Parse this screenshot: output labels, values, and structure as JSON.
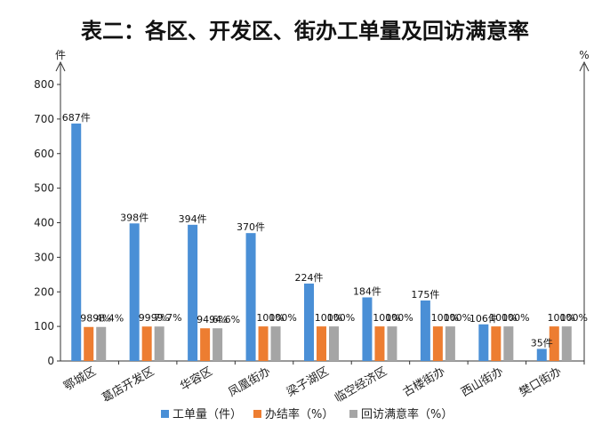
{
  "chart_data": {
    "type": "bar",
    "title": "表二：各区、开发区、街办工单量及回访满意率",
    "left_axis_unit": "件",
    "right_axis_unit": "%",
    "ylim": [
      0,
      800
    ],
    "yticks": [
      0,
      100,
      200,
      300,
      400,
      500,
      600,
      700,
      800
    ],
    "categories": [
      "鄂城区",
      "葛店开发区",
      "华容区",
      "凤凰街办",
      "梁子湖区",
      "临空经济区",
      "古楼街办",
      "西山街办",
      "樊口街办"
    ],
    "series": [
      {
        "name": "工单量（件）",
        "color": "#4a8fd6",
        "values": [
          687,
          398,
          394,
          370,
          224,
          184,
          175,
          106,
          35
        ],
        "labels": [
          "687件",
          "398件",
          "394件",
          "370件",
          "224件",
          "184件",
          "175件",
          "106件",
          "35件"
        ]
      },
      {
        "name": "办结率（%）",
        "color": "#ed7d31",
        "values": [
          98.4,
          99.7,
          94.6,
          100,
          100,
          100,
          100,
          100,
          100
        ],
        "labels": [
          "98.4%",
          "99.7%",
          "94.6%",
          "100%",
          "100%",
          "100%",
          "100%",
          "100%",
          "100%"
        ]
      },
      {
        "name": "回访满意率（%）",
        "color": "#a5a5a5",
        "values": [
          98.4,
          99.7,
          94.6,
          100,
          100,
          100,
          100,
          100,
          100
        ],
        "labels": [
          "98.4%",
          "99.7%",
          "94.6%",
          "100%",
          "100%",
          "100%",
          "100%",
          "100%",
          "100%"
        ]
      }
    ],
    "legend_position": "bottom",
    "grid": false
  }
}
